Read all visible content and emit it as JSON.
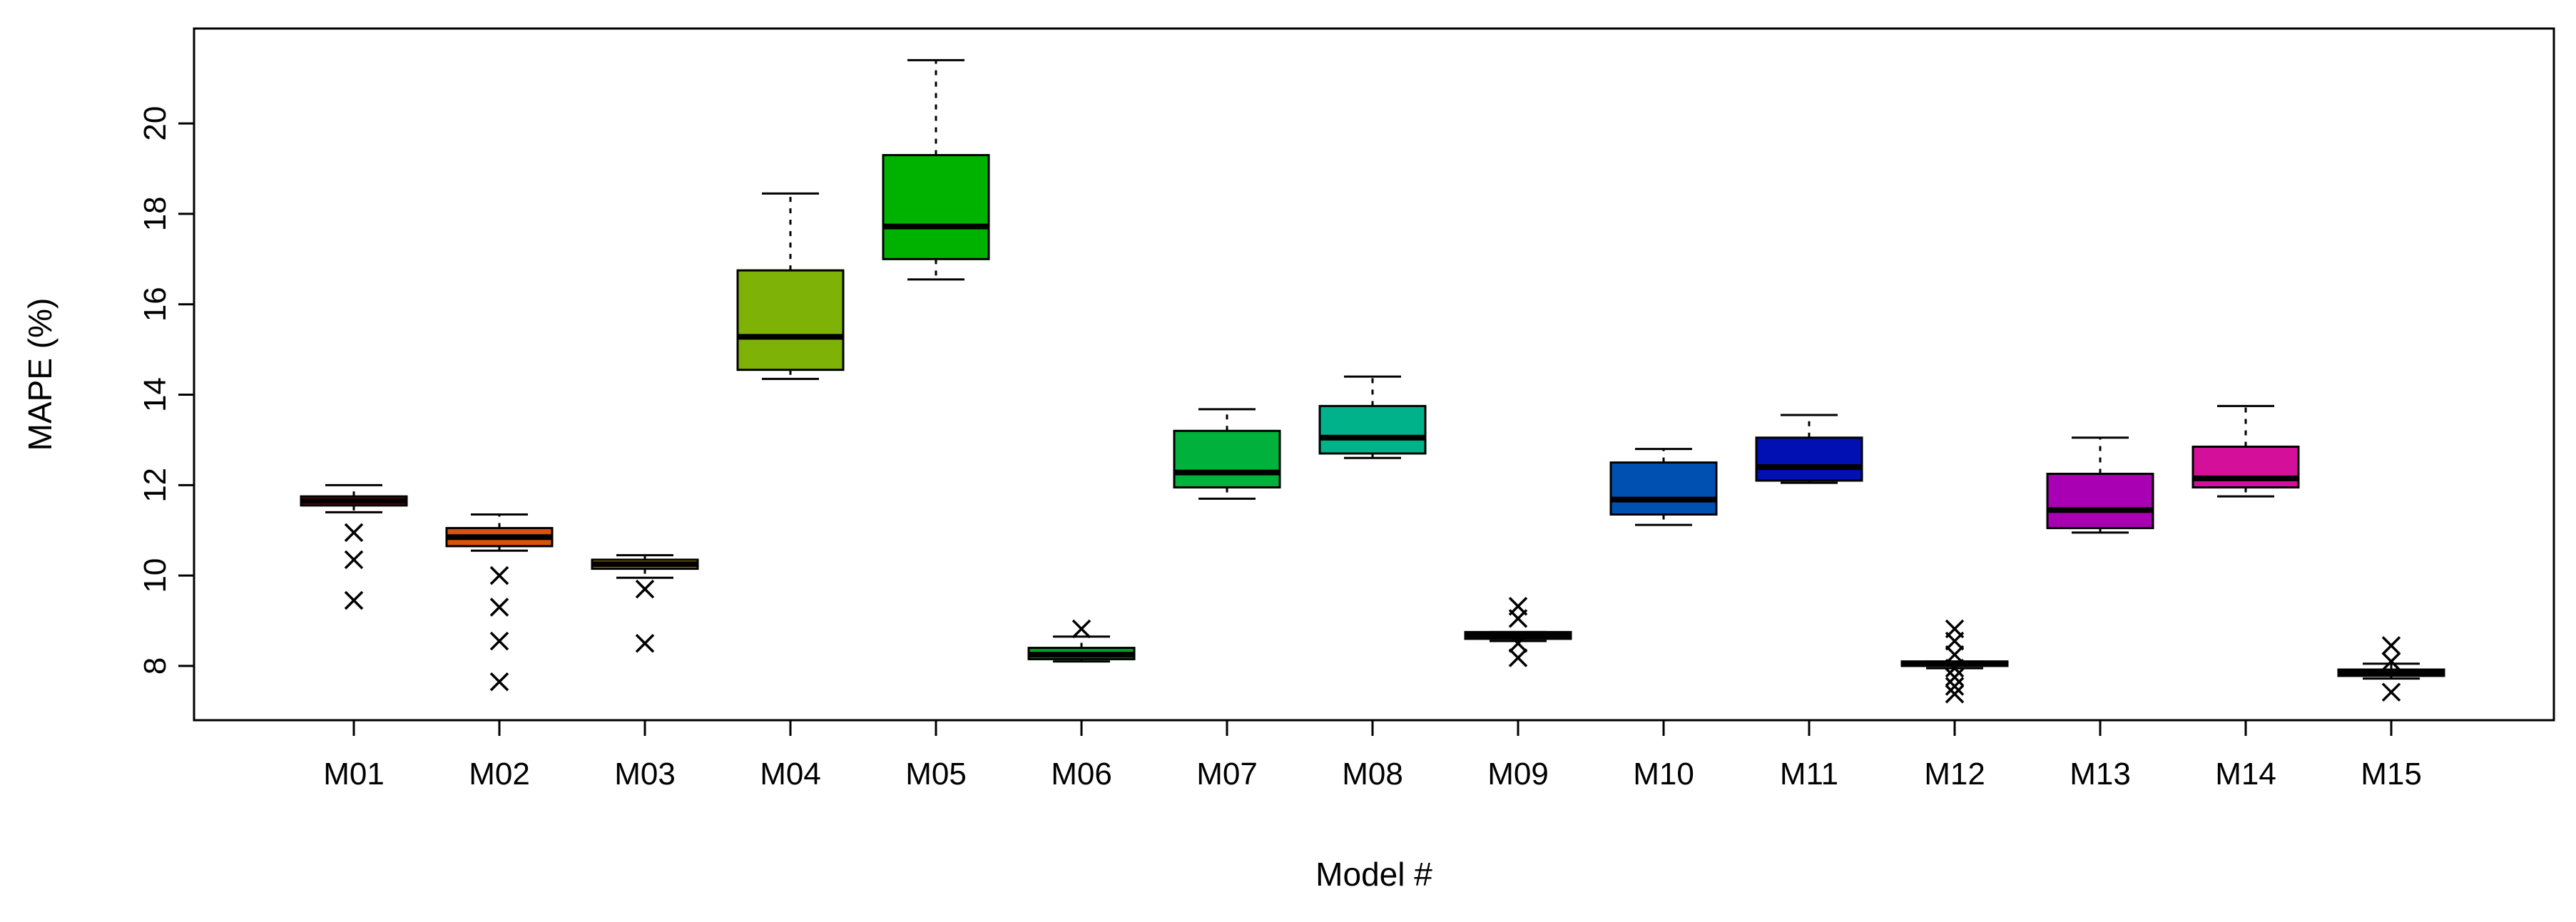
{
  "chart_data": {
    "type": "boxplot",
    "title": "",
    "xlabel": "Model #",
    "ylabel": "MAPE (%)",
    "ylim": [
      6.8,
      22.1
    ],
    "yticks": [
      8,
      10,
      12,
      14,
      16,
      18,
      20
    ],
    "grid": false,
    "legend": "none",
    "categories": [
      "M01",
      "M02",
      "M03",
      "M04",
      "M05",
      "M06",
      "M07",
      "M08",
      "M09",
      "M10",
      "M11",
      "M12",
      "M13",
      "M14",
      "M15"
    ],
    "boxes": [
      {
        "name": "M01",
        "color": "#9e1212",
        "whisker_low": 11.4,
        "q1": 11.55,
        "median": 11.65,
        "q3": 11.75,
        "whisker_high": 12.0,
        "outliers": [
          10.95,
          10.35,
          9.45
        ]
      },
      {
        "name": "M02",
        "color": "#d9530c",
        "whisker_low": 10.55,
        "q1": 10.65,
        "median": 10.85,
        "q3": 11.05,
        "whisker_high": 11.35,
        "outliers": [
          10.0,
          9.3,
          8.55,
          7.65
        ]
      },
      {
        "name": "M03",
        "color": "#c9a218",
        "whisker_low": 9.95,
        "q1": 10.15,
        "median": 10.25,
        "q3": 10.35,
        "whisker_high": 10.45,
        "outliers": [
          9.7,
          8.5
        ]
      },
      {
        "name": "M04",
        "color": "#7fb207",
        "whisker_low": 14.35,
        "q1": 14.55,
        "median": 15.28,
        "q3": 16.75,
        "whisker_high": 18.45,
        "outliers": []
      },
      {
        "name": "M05",
        "color": "#00b200",
        "whisker_low": 16.55,
        "q1": 17.0,
        "median": 17.72,
        "q3": 19.3,
        "whisker_high": 21.4,
        "outliers": []
      },
      {
        "name": "M06",
        "color": "#00a12a",
        "whisker_low": 8.1,
        "q1": 8.15,
        "median": 8.25,
        "q3": 8.4,
        "whisker_high": 8.65,
        "outliers": [
          8.82
        ]
      },
      {
        "name": "M07",
        "color": "#00b23b",
        "whisker_low": 11.7,
        "q1": 11.95,
        "median": 12.28,
        "q3": 13.2,
        "whisker_high": 13.68,
        "outliers": []
      },
      {
        "name": "M08",
        "color": "#00b28a",
        "whisker_low": 12.6,
        "q1": 12.7,
        "median": 13.05,
        "q3": 13.75,
        "whisker_high": 14.4,
        "outliers": []
      },
      {
        "name": "M09",
        "color": "#0098b2",
        "whisker_low": 8.55,
        "q1": 8.6,
        "median": 8.68,
        "q3": 8.75,
        "whisker_high": 8.75,
        "outliers": [
          9.32,
          9.05,
          8.5,
          8.18
        ]
      },
      {
        "name": "M10",
        "color": "#0050b2",
        "whisker_low": 11.12,
        "q1": 11.35,
        "median": 11.68,
        "q3": 12.5,
        "whisker_high": 12.8,
        "outliers": []
      },
      {
        "name": "M11",
        "color": "#0010b2",
        "whisker_low": 12.05,
        "q1": 12.1,
        "median": 12.4,
        "q3": 13.05,
        "whisker_high": 13.55,
        "outliers": []
      },
      {
        "name": "M12",
        "color": "#3800b2",
        "whisker_low": 7.95,
        "q1": 8.0,
        "median": 8.05,
        "q3": 8.1,
        "whisker_high": 8.1,
        "outliers": [
          8.82,
          8.55,
          8.25,
          7.95,
          7.75,
          7.55,
          7.38
        ]
      },
      {
        "name": "M13",
        "color": "#a800b2",
        "whisker_low": 10.95,
        "q1": 11.05,
        "median": 11.45,
        "q3": 12.25,
        "whisker_high": 13.05,
        "outliers": []
      },
      {
        "name": "M14",
        "color": "#d4109a",
        "whisker_low": 11.75,
        "q1": 11.95,
        "median": 12.15,
        "q3": 12.85,
        "whisker_high": 13.75,
        "outliers": []
      },
      {
        "name": "M15",
        "color": "#b20030",
        "whisker_low": 7.72,
        "q1": 7.78,
        "median": 7.85,
        "q3": 7.92,
        "whisker_high": 8.05,
        "outliers": [
          8.45,
          8.1,
          7.42
        ]
      }
    ]
  }
}
